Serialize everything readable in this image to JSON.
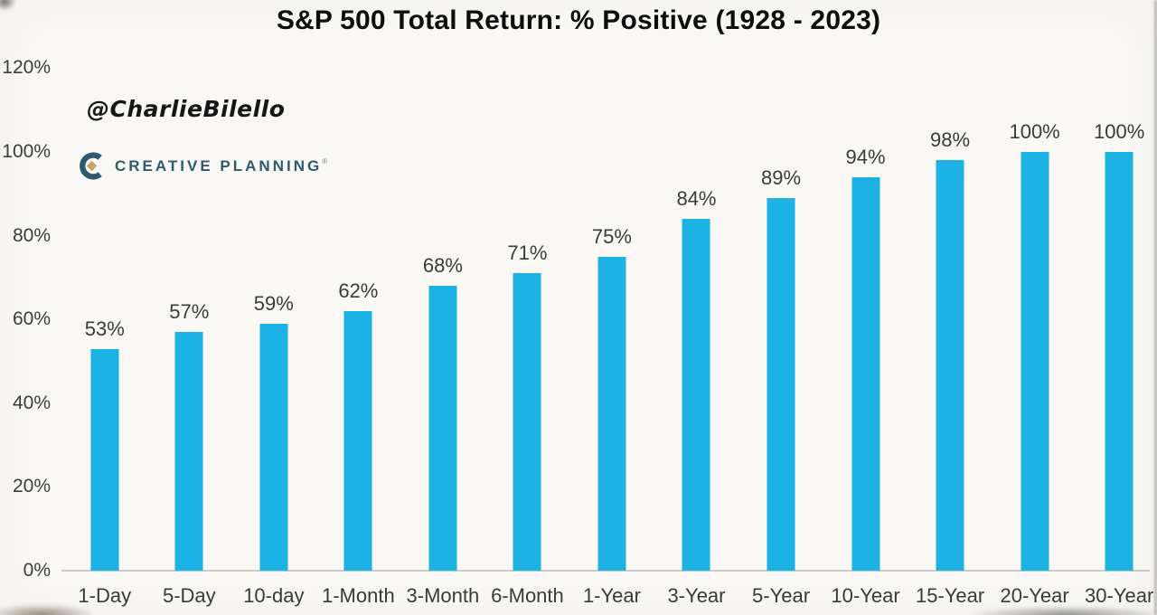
{
  "header": {
    "title": "S&P 500 Total Return: % Positive (1928 - 2023)"
  },
  "watermark": {
    "handle": "@CharlieBilello"
  },
  "logo": {
    "brand": "CREATIVE PLANNING",
    "trademark": "®",
    "icon": "creative-planning-c-icon"
  },
  "colors": {
    "bar": "#1cb2e3",
    "background": "#f9f8f4",
    "label_text": "#3a3a3a",
    "axis_line": "#cccbc8",
    "logo_teal": "#2e5a6f",
    "logo_gold": "#c9a474",
    "title_text": "#0e0e0e"
  },
  "chart_data": {
    "type": "bar",
    "title": "S&P 500 Total Return: % Positive (1928 - 2023)",
    "categories": [
      "1-Day",
      "5-Day",
      "10-day",
      "1-Month",
      "3-Month",
      "6-Month",
      "1-Year",
      "3-Year",
      "5-Year",
      "10-Year",
      "15-Year",
      "20-Year",
      "30-Year"
    ],
    "values": [
      53,
      57,
      59,
      62,
      68,
      71,
      75,
      84,
      89,
      94,
      98,
      100,
      100
    ],
    "value_labels": [
      "53%",
      "57%",
      "59%",
      "62%",
      "68%",
      "71%",
      "75%",
      "84%",
      "89%",
      "94%",
      "98%",
      "100%",
      "100%"
    ],
    "xlabel": "",
    "ylabel": "",
    "ylim": [
      0,
      120
    ],
    "yticks": [
      0,
      20,
      40,
      60,
      80,
      100,
      120
    ],
    "ytick_labels": [
      "0%",
      "20%",
      "40%",
      "60%",
      "80%",
      "100%",
      "120%"
    ],
    "grid": false,
    "legend": false,
    "bar_color": "#1cb2e3"
  }
}
